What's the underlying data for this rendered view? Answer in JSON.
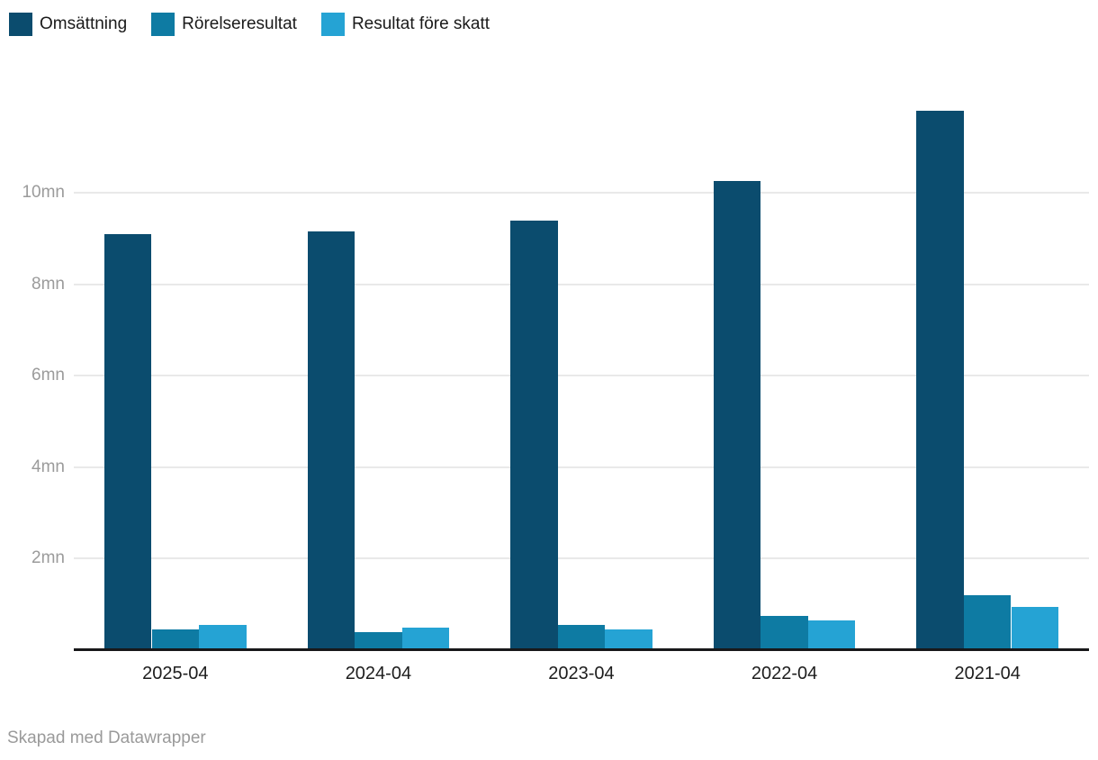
{
  "legend": {
    "items": [
      {
        "label": "Omsättning",
        "color": "#0b4c6e"
      },
      {
        "label": "Rörelseresultat",
        "color": "#0e7ba3"
      },
      {
        "label": "Resultat före skatt",
        "color": "#25a3d4"
      }
    ]
  },
  "footer": {
    "credit": "Skapad med Datawrapper"
  },
  "chart_data": {
    "type": "bar",
    "title": "",
    "categories": [
      "2025-04",
      "2024-04",
      "2023-04",
      "2022-04",
      "2021-04"
    ],
    "series": [
      {
        "name": "Omsättning",
        "color": "#0b4c6e",
        "values": [
          9.1,
          9.15,
          9.4,
          10.25,
          11.8
        ]
      },
      {
        "name": "Rörelseresultat",
        "color": "#0e7ba3",
        "values": [
          0.45,
          0.4,
          0.55,
          0.75,
          1.2
        ]
      },
      {
        "name": "Resultat före skatt",
        "color": "#25a3d4",
        "values": [
          0.55,
          0.5,
          0.45,
          0.65,
          0.95
        ]
      }
    ],
    "unit": "mn",
    "ylim": [
      0,
      12.05
    ],
    "yticks": [
      {
        "value": 2,
        "label": "2mn"
      },
      {
        "value": 4,
        "label": "4mn"
      },
      {
        "value": 6,
        "label": "6mn"
      },
      {
        "value": 8,
        "label": "8mn"
      },
      {
        "value": 10,
        "label": "10mn"
      }
    ],
    "grid": true,
    "legend_position": "top-left",
    "axis_color": "#18181a",
    "gridline_color": "#e9e9e9",
    "attribution": "Skapad med Datawrapper"
  }
}
